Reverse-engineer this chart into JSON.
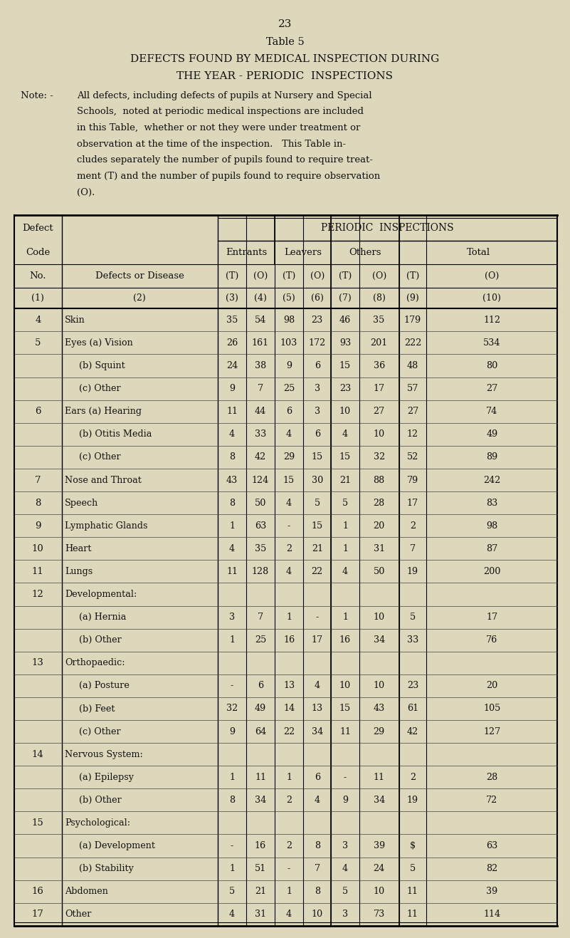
{
  "page_number": "23",
  "title_line1": "Table 5",
  "title_line2": "DEFECTS FOUND BY MEDICAL INSPECTION DURING",
  "title_line3": "THE YEAR - PERIODIC  INSPECTIONS",
  "note_label": "Note: -",
  "bg_color": "#ddd8bb",
  "text_color": "#111111",
  "note_lines": [
    "All defects, including defects of pupils at Nursery and Special",
    "Schools,  noted at periodic medical inspections are included",
    "in this Table,  whether or not they were under treatment or",
    "observation at the time of the inspection.   This Table in-",
    "cludes separately the number of pupils found to require treat-",
    "ment (T) and the number of pupils found to require observation",
    "(O)."
  ],
  "rows": [
    [
      "4",
      "Skin",
      "35",
      "54",
      "98",
      "23",
      "46",
      "35",
      "179",
      "112"
    ],
    [
      "5",
      "Eyes (a) Vision",
      "26",
      "161",
      "103",
      "172",
      "93",
      "201",
      "222",
      "534"
    ],
    [
      "",
      "     (b) Squint",
      "24",
      "38",
      "9",
      "6",
      "15",
      "36",
      "48",
      "80"
    ],
    [
      "",
      "     (c) Other",
      "9",
      "7",
      "25",
      "3",
      "23",
      "17",
      "57",
      "27"
    ],
    [
      "6",
      "Ears (a) Hearing",
      "11",
      "44",
      "6",
      "3",
      "10",
      "27",
      "27",
      "74"
    ],
    [
      "",
      "     (b) Otitis Media",
      "4",
      "33",
      "4",
      "6",
      "4",
      "10",
      "12",
      "49"
    ],
    [
      "",
      "     (c) Other",
      "8",
      "42",
      "29",
      "15",
      "15",
      "32",
      "52",
      "89"
    ],
    [
      "7",
      "Nose and Throat",
      "43",
      "124",
      "15",
      "30",
      "21",
      "88",
      "79",
      "242"
    ],
    [
      "8",
      "Speech",
      "8",
      "50",
      "4",
      "5",
      "5",
      "28",
      "17",
      "83"
    ],
    [
      "9",
      "Lymphatic Glands",
      "1",
      "63",
      "-",
      "15",
      "1",
      "20",
      "2",
      "98"
    ],
    [
      "10",
      "Heart",
      "4",
      "35",
      "2",
      "21",
      "1",
      "31",
      "7",
      "87"
    ],
    [
      "11",
      "Lungs",
      "11",
      "128",
      "4",
      "22",
      "4",
      "50",
      "19",
      "200"
    ],
    [
      "12",
      "Developmental:",
      "",
      "",
      "",
      "",
      "",
      "",
      "",
      ""
    ],
    [
      "",
      "     (a) Hernia",
      "3",
      "7",
      "1",
      "-",
      "1",
      "10",
      "5",
      "17"
    ],
    [
      "",
      "     (b) Other",
      "1",
      "25",
      "16",
      "17",
      "16",
      "34",
      "33",
      "76"
    ],
    [
      "13",
      "Orthopaedic:",
      "",
      "",
      "",
      "",
      "",
      "",
      "",
      ""
    ],
    [
      "",
      "     (a) Posture",
      "-",
      "6",
      "13",
      "4",
      "10",
      "10",
      "23",
      "20"
    ],
    [
      "",
      "     (b) Feet",
      "32",
      "49",
      "14",
      "13",
      "15",
      "43",
      "61",
      "105"
    ],
    [
      "",
      "     (c) Other",
      "9",
      "64",
      "22",
      "34",
      "11",
      "29",
      "42",
      "127"
    ],
    [
      "14",
      "Nervous System:",
      "",
      "",
      "",
      "",
      "",
      "",
      "",
      ""
    ],
    [
      "",
      "     (a) Epilepsy",
      "1",
      "11",
      "1",
      "6",
      "-",
      "11",
      "2",
      "28"
    ],
    [
      "",
      "     (b) Other",
      "8",
      "34",
      "2",
      "4",
      "9",
      "34",
      "19",
      "72"
    ],
    [
      "15",
      "Psychological:",
      "",
      "",
      "",
      "",
      "",
      "",
      "",
      ""
    ],
    [
      "",
      "     (a) Development",
      "-",
      "16",
      "2",
      "8",
      "3",
      "39",
      "$",
      "63"
    ],
    [
      "",
      "     (b) Stability",
      "1",
      "51",
      "-",
      "7",
      "4",
      "24",
      "5",
      "82"
    ],
    [
      "16",
      "Abdomen",
      "5",
      "21",
      "1",
      "8",
      "5",
      "10",
      "11",
      "39"
    ],
    [
      "17",
      "Other",
      "4",
      "31",
      "4",
      "10",
      "3",
      "73",
      "11",
      "114"
    ]
  ]
}
